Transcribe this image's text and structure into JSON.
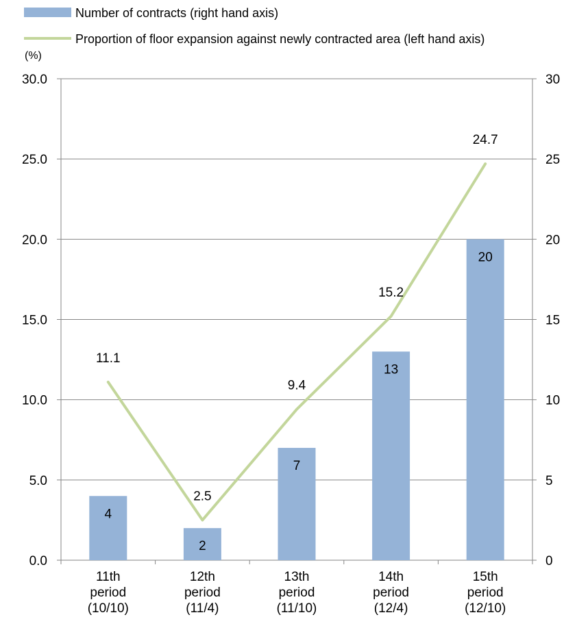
{
  "chart_data": {
    "type": "bar",
    "categories": [
      [
        "11th",
        "period",
        "(10/10)"
      ],
      [
        "12th",
        "period",
        "(11/4)"
      ],
      [
        "13th",
        "period",
        "(11/10)"
      ],
      [
        "14th",
        "period",
        "(12/4)"
      ],
      [
        "15th",
        "period",
        "(12/10)"
      ]
    ],
    "series": [
      {
        "name": "Number of contracts (right hand axis)",
        "type": "bar",
        "axis": "right",
        "values": [
          4,
          2,
          7,
          13,
          20
        ],
        "color": "#95B3D7"
      },
      {
        "name": "Proportion of floor expansion against newly contracted area (left hand axis)",
        "type": "line",
        "axis": "left",
        "values": [
          11.1,
          2.5,
          9.4,
          15.2,
          24.7
        ],
        "labels": [
          "11.1",
          "2.5",
          "9.4",
          "15.2",
          "24.7"
        ],
        "color": "#C3D69B"
      }
    ],
    "y_left": {
      "unit_label": "(%)",
      "range": [
        0,
        30
      ],
      "ticks": [
        0,
        5,
        10,
        15,
        20,
        25,
        30
      ],
      "tick_labels": [
        "0.0",
        "5.0",
        "10.0",
        "15.0",
        "20.0",
        "25.0",
        "30.0"
      ]
    },
    "y_right": {
      "range": [
        0,
        30
      ],
      "ticks": [
        0,
        5,
        10,
        15,
        20,
        25,
        30
      ],
      "tick_labels": [
        "0",
        "5",
        "10",
        "15",
        "20",
        "25",
        "30"
      ]
    },
    "grid": true,
    "legend_position": "top-left",
    "gridline_color": "#868686",
    "axis_color": "#868686"
  }
}
